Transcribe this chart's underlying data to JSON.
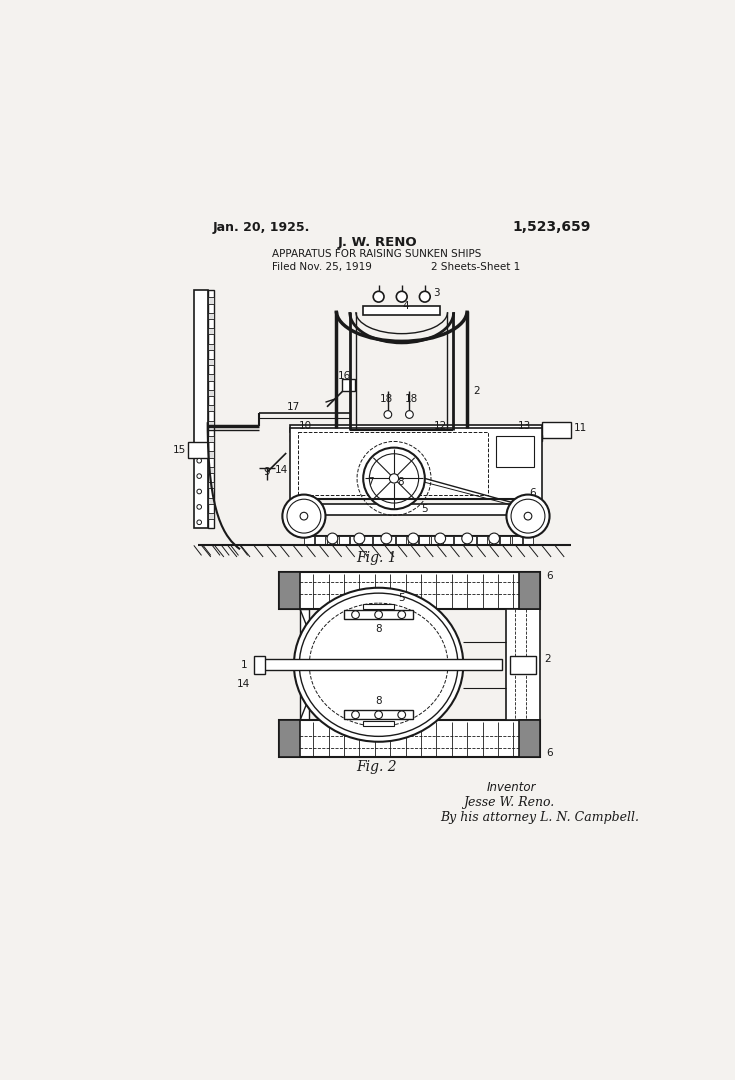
{
  "bg_color": "#f4f2ef",
  "line_color": "#1a1a1a",
  "text_color": "#1a1a1a",
  "date_left": "Jan. 20, 1925.",
  "patent_number": "1,523,659",
  "inventor_name": "J. W. RENO",
  "title": "APPARATUS FOR RAISING SUNKEN SHIPS",
  "filed": "Filed Nov. 25, 1919",
  "sheets": "2 Sheets-Sheet 1",
  "fig1_label": "Fig. 1",
  "fig2_label": "Fig. 2",
  "inventor_label": "Inventor",
  "signature1": "Jesse W. Reno.",
  "signature2": "By his attorney L. N. Campbell.",
  "figsize": [
    7.35,
    10.8
  ],
  "dpi": 100
}
